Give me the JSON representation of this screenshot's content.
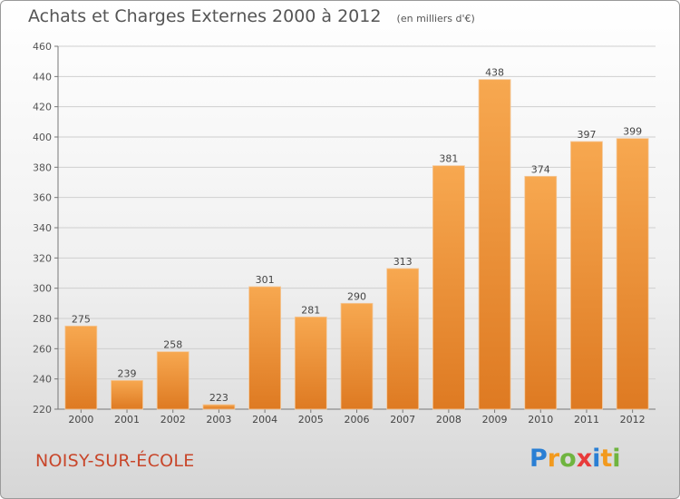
{
  "title": "Achats et Charges Externes 2000 à 2012",
  "subtitle": "(en milliers d'€)",
  "location": "NOISY-SUR-ÉCOLE",
  "logo": {
    "letters": [
      "P",
      "r",
      "o",
      "x",
      "i",
      "t",
      "i"
    ],
    "colors": [
      "#2a7fd4",
      "#f29a1e",
      "#6fb43f",
      "#e83a3a",
      "#2a7fd4",
      "#f29a1e",
      "#6fb43f"
    ]
  },
  "colors": {
    "bar_light": "#f7a850",
    "bar_dark": "#e07a20",
    "text": "#555555",
    "location": "#c8462a"
  },
  "chart_data": {
    "type": "bar",
    "categories": [
      "2000",
      "2001",
      "2002",
      "2003",
      "2004",
      "2005",
      "2006",
      "2007",
      "2008",
      "2009",
      "2010",
      "2011",
      "2012"
    ],
    "values": [
      275,
      239,
      258,
      223,
      301,
      281,
      290,
      313,
      381,
      438,
      374,
      397,
      399
    ],
    "ylim": [
      220,
      460
    ],
    "yticks": [
      220,
      240,
      260,
      280,
      300,
      320,
      340,
      360,
      380,
      400,
      420,
      440,
      460
    ],
    "grid": true,
    "xlabel": "",
    "ylabel": ""
  }
}
